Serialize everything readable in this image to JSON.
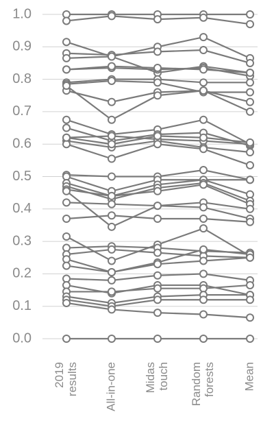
{
  "chart_data": {
    "type": "line",
    "categories": [
      [
        "2019",
        "results"
      ],
      [
        "All-in-one"
      ],
      [
        "Midas",
        "touch"
      ],
      [
        "Random",
        "forests"
      ],
      [
        "Mean"
      ]
    ],
    "color": "#7a7a7a",
    "ylim": [
      0,
      1
    ],
    "yticks": [
      {
        "value": 0,
        "label": "0.0"
      },
      0.1,
      0.2,
      0.3,
      0.4,
      0.5,
      0.6,
      0.7,
      0.8,
      0.9,
      {
        "value": 1,
        "label": "1.0"
      }
    ],
    "grid": true,
    "series": [
      {
        "values": [
          1.0,
          1.0,
          1.0,
          1.0,
          1.0
        ]
      },
      {
        "values": [
          0.98,
          0.995,
          0.985,
          0.99,
          0.97
        ]
      },
      {
        "values": [
          0.915,
          0.87,
          0.9,
          0.93,
          0.865
        ]
      },
      {
        "values": [
          0.88,
          0.875,
          0.885,
          0.89,
          0.85
        ]
      },
      {
        "values": [
          0.865,
          0.87,
          0.82,
          0.84,
          0.82
        ]
      },
      {
        "values": [
          0.83,
          0.835,
          0.83,
          0.835,
          0.81
        ]
      },
      {
        "values": [
          0.83,
          0.84,
          0.835,
          0.83,
          0.82
        ]
      },
      {
        "values": [
          0.79,
          0.8,
          0.8,
          0.79,
          0.79
        ]
      },
      {
        "values": [
          0.785,
          0.795,
          0.79,
          0.76,
          0.76
        ]
      },
      {
        "values": [
          0.765,
          0.73,
          0.76,
          0.765,
          0.73
        ]
      },
      {
        "values": [
          0.78,
          0.675,
          0.75,
          0.765,
          0.7
        ]
      },
      {
        "values": [
          0.675,
          0.63,
          0.645,
          0.675,
          0.6
        ]
      },
      {
        "values": [
          0.65,
          0.61,
          0.63,
          0.635,
          0.595
        ]
      },
      {
        "values": [
          0.62,
          0.625,
          0.615,
          0.61,
          0.6
        ]
      },
      {
        "values": [
          0.61,
          0.59,
          0.61,
          0.59,
          0.575
        ]
      },
      {
        "values": [
          0.6,
          0.555,
          0.6,
          0.585,
          0.535
        ]
      },
      {
        "values": [
          0.62,
          0.6,
          0.625,
          0.62,
          0.605
        ]
      },
      {
        "values": [
          0.505,
          0.5,
          0.5,
          0.52,
          0.49
        ]
      },
      {
        "values": [
          0.5,
          0.455,
          0.49,
          0.49,
          0.49
        ]
      },
      {
        "values": [
          0.48,
          0.44,
          0.475,
          0.49,
          0.445
        ]
      },
      {
        "values": [
          0.47,
          0.43,
          0.465,
          0.48,
          0.425
        ]
      },
      {
        "values": [
          0.46,
          0.44,
          0.455,
          0.475,
          0.415
        ]
      },
      {
        "values": [
          0.42,
          0.415,
          0.41,
          0.42,
          0.4
        ]
      },
      {
        "values": [
          0.455,
          0.345,
          0.41,
          0.405,
          0.37
        ]
      },
      {
        "values": [
          0.37,
          0.38,
          0.37,
          0.37,
          0.36
        ]
      },
      {
        "values": [
          0.315,
          0.24,
          0.29,
          0.34,
          0.255
        ]
      },
      {
        "values": [
          0.28,
          0.285,
          0.28,
          0.27,
          0.265
        ]
      },
      {
        "values": [
          0.26,
          0.275,
          0.265,
          0.255,
          0.25
        ]
      },
      {
        "values": [
          0.245,
          0.205,
          0.235,
          0.275,
          0.26
        ]
      },
      {
        "values": [
          0.225,
          0.205,
          0.23,
          0.24,
          0.25
        ]
      },
      {
        "values": [
          0.185,
          0.18,
          0.195,
          0.2,
          0.18
        ]
      },
      {
        "values": [
          0.165,
          0.14,
          0.165,
          0.165,
          0.135
        ]
      },
      {
        "values": [
          0.145,
          0.145,
          0.155,
          0.155,
          0.165
        ]
      },
      {
        "values": [
          0.13,
          0.11,
          0.13,
          0.135,
          0.135
        ]
      },
      {
        "values": [
          0.12,
          0.1,
          0.12,
          0.12,
          0.12
        ]
      },
      {
        "values": [
          0.11,
          0.09,
          0.08,
          0.075,
          0.065
        ]
      },
      {
        "values": [
          0,
          0,
          0,
          0,
          0
        ]
      }
    ]
  }
}
